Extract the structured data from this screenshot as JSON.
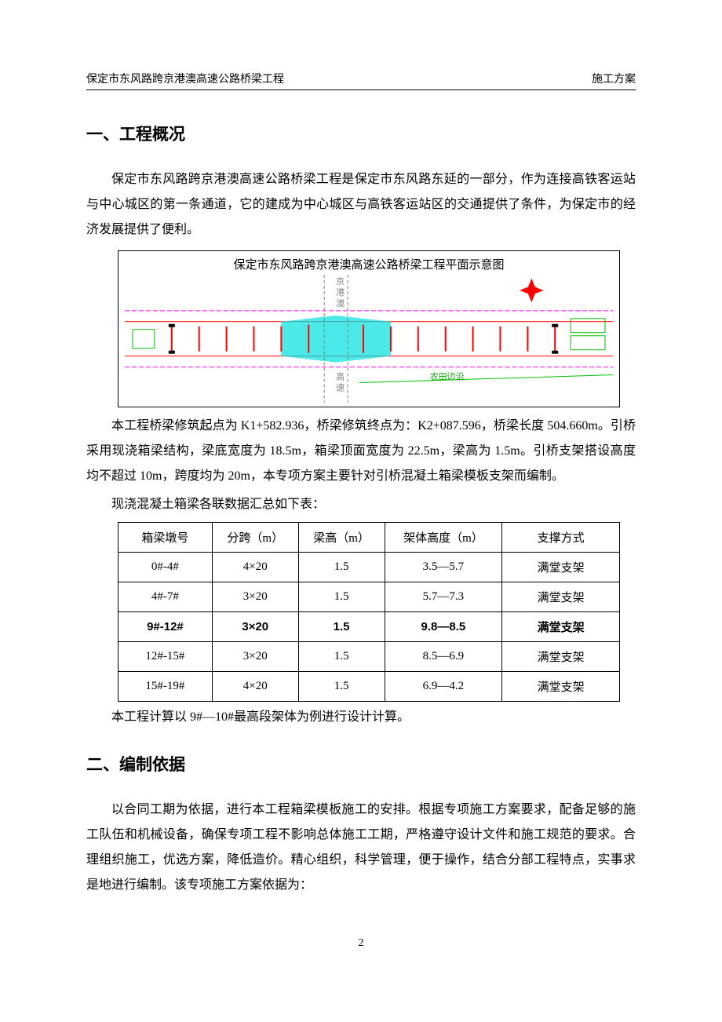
{
  "header": {
    "left": "保定市东风路跨京港澳高速公路桥梁工程",
    "right": "施工方案"
  },
  "section1": {
    "title": "一、工程概况",
    "p1": "保定市东风路跨京港澳高速公路桥梁工程是保定市东风路东延的一部分，作为连接高铁客运站与中心城区的第一条通道，它的建成为中心城区与高铁客运站区的交通提供了条件，为保定市的经济发展提供了便利。",
    "diagram": {
      "title": "保定市东风路跨京港澳高速公路桥梁工程平面示意图",
      "highway_label_top": "京港澳",
      "highway_label_bottom": "高速",
      "field_label": "农田边沿",
      "colors": {
        "border": "#000000",
        "road_magenta": "#ff00ff",
        "road_red": "#ff0000",
        "cyan_fill": "#00e0e0",
        "green": "#00c000",
        "highway_text": "#808080",
        "field_text": "#00aa00"
      }
    },
    "p2": "本工程桥梁修筑起点为 K1+582.936，桥梁修筑终点为：K2+087.596，桥梁长度 504.660m。引桥采用现浇箱梁结构，梁底宽度为 18.5m，箱梁顶面宽度为 22.5m，梁高为 1.5m。引桥支架搭设高度均不超过 10m，跨度均为 20m，本专项方案主要针对引桥混凝土箱梁模板支架而编制。",
    "p3": "现浇混凝土箱梁各联数据汇总如下表：",
    "table": {
      "columns": [
        "箱梁墩号",
        "分跨（m）",
        "梁高（m）",
        "架体高度（m）",
        "支撑方式"
      ],
      "col_widths": [
        "120px",
        "110px",
        "110px",
        "150px",
        "150px"
      ],
      "rows": [
        {
          "cells": [
            "0#-4#",
            "4×20",
            "1.5",
            "3.5—5.7",
            "满堂支架"
          ],
          "bold": false
        },
        {
          "cells": [
            "4#-7#",
            "3×20",
            "1.5",
            "5.7—7.3",
            "满堂支架"
          ],
          "bold": false
        },
        {
          "cells": [
            "9#-12#",
            "3×20",
            "1.5",
            "9.8—8.5",
            "满堂支架"
          ],
          "bold": true
        },
        {
          "cells": [
            "12#-15#",
            "3×20",
            "1.5",
            "8.5—6.9",
            "满堂支架"
          ],
          "bold": false
        },
        {
          "cells": [
            "15#-19#",
            "4×20",
            "1.5",
            "6.9—4.2",
            "满堂支架"
          ],
          "bold": false
        }
      ]
    },
    "p4": "本工程计算以 9#—10#最高段架体为例进行设计计算。"
  },
  "section2": {
    "title": "二、编制依据",
    "p1": "以合同工期为依据，进行本工程箱梁模板施工的安排。根据专项施工方案要求，配备足够的施工队伍和机械设备，确保专项工程不影响总体施工工期，严格遵守设计文件和施工规范的要求。合理组织施工，优选方案，降低造价。精心组织，科学管理，便于操作，结合分部工程特点，实事求是地进行编制。该专项施工方案依据为："
  },
  "page_number": "2"
}
